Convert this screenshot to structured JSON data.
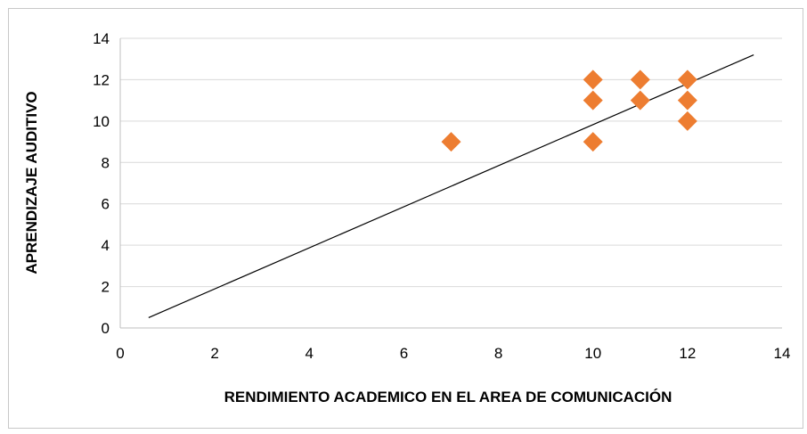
{
  "chart_data": {
    "type": "scatter",
    "title": "",
    "xlabel": "RENDIMIENTO ACADEMICO EN EL AREA DE COMUNICACIÓN",
    "ylabel": "APRENDIZAJE AUDITIVO",
    "xlim": [
      0,
      14
    ],
    "ylim": [
      0,
      14
    ],
    "xticks": [
      0,
      2,
      4,
      6,
      8,
      10,
      12,
      14
    ],
    "yticks": [
      0,
      2,
      4,
      6,
      8,
      10,
      12,
      14
    ],
    "grid": "horizontal",
    "legend": "none",
    "series": [
      {
        "marker": "diamond",
        "color": "#ED7D31",
        "points": [
          {
            "x": 7,
            "y": 9
          },
          {
            "x": 10,
            "y": 12
          },
          {
            "x": 10,
            "y": 11
          },
          {
            "x": 10,
            "y": 9
          },
          {
            "x": 11,
            "y": 12
          },
          {
            "x": 11,
            "y": 11
          },
          {
            "x": 12,
            "y": 12
          },
          {
            "x": 12,
            "y": 11
          },
          {
            "x": 12,
            "y": 10
          }
        ]
      }
    ],
    "trendline": {
      "type": "linear",
      "color": "#000000",
      "from": {
        "x": 0.6,
        "y": 0.5
      },
      "to": {
        "x": 13.4,
        "y": 13.2
      }
    },
    "colors": {
      "grid": "#d9d9d9",
      "axis": "#bfbfbf"
    }
  }
}
